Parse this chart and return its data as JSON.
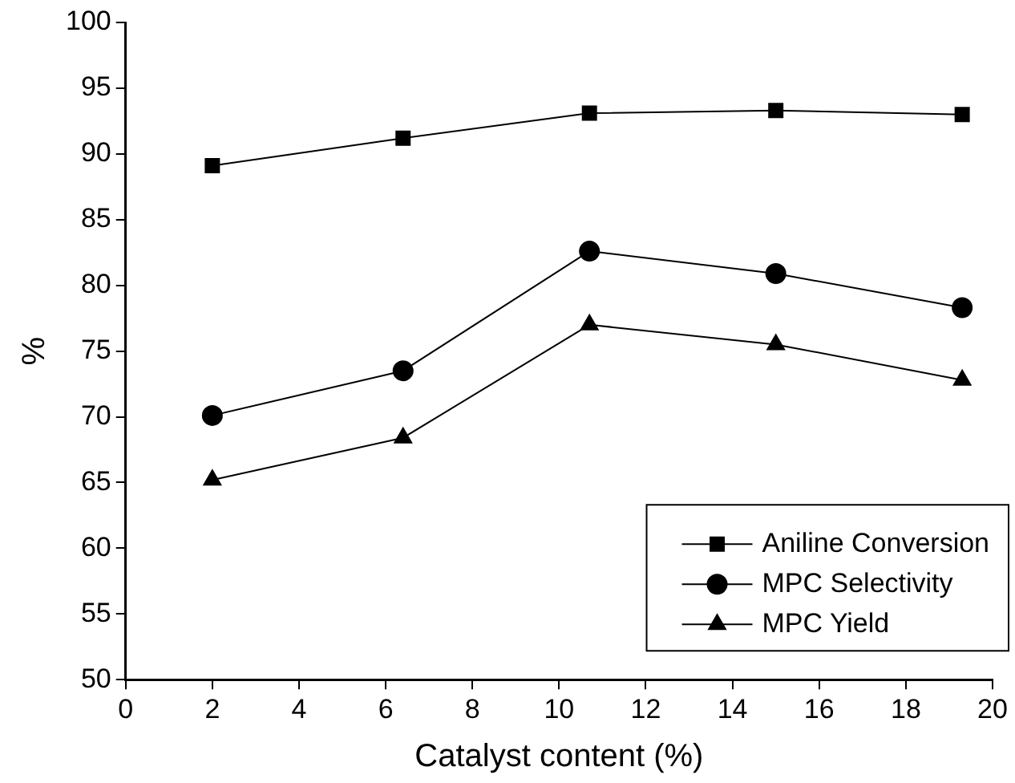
{
  "chart_data": {
    "type": "line",
    "xlabel": "Catalyst content (%)",
    "ylabel": "%",
    "x": [
      2.0,
      6.4,
      10.7,
      15.0,
      19.3
    ],
    "series": [
      {
        "name": "Aniline Conversion",
        "color": "#000000",
        "marker": "square",
        "values": [
          89.1,
          91.2,
          93.1,
          93.3,
          93.0
        ]
      },
      {
        "name": "MPC Selectivity",
        "color": "#000000",
        "marker": "circle",
        "values": [
          70.1,
          73.5,
          82.6,
          80.9,
          78.3
        ]
      },
      {
        "name": "MPC Yield",
        "color": "#000000",
        "marker": "triangle",
        "values": [
          65.2,
          68.4,
          77.0,
          75.5,
          72.8
        ]
      }
    ],
    "xlim": [
      0,
      20
    ],
    "xticks": [
      0,
      2,
      4,
      6,
      8,
      10,
      12,
      14,
      16,
      18,
      20
    ],
    "ylim": [
      50,
      100
    ],
    "yticks": [
      50,
      55,
      60,
      65,
      70,
      75,
      80,
      85,
      90,
      95,
      100
    ],
    "grid": false,
    "legend": "bottom right",
    "line_style": "solid"
  }
}
